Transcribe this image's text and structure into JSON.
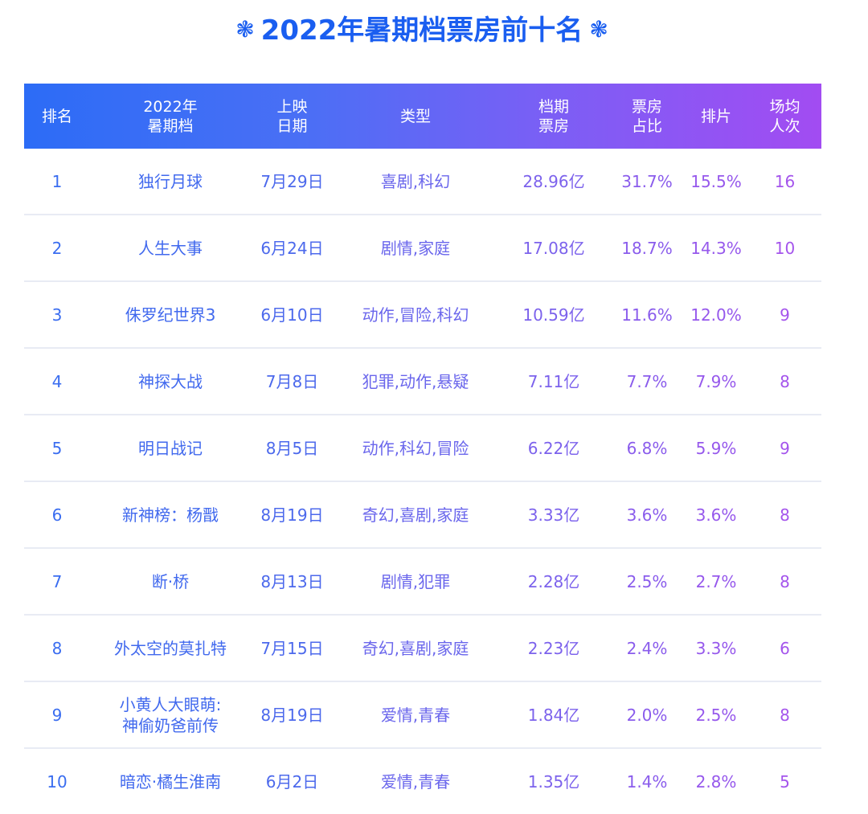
{
  "title": {
    "text": "2022年暑期档票房前十名",
    "left_icon": "snowflake-icon",
    "right_icon": "snowflake-icon",
    "icon_glyph": "❃"
  },
  "colors": {
    "title": "#1a5ef0",
    "header_gradient_start": "#2c6cf6",
    "header_gradient_end": "#a24cf2",
    "row_divider": "#e8ebf4"
  },
  "table": {
    "headers": [
      {
        "line1": "排名",
        "line2": ""
      },
      {
        "line1": "2022年",
        "line2": "暑期档"
      },
      {
        "line1": "上映",
        "line2": "日期"
      },
      {
        "line1": "类型",
        "line2": ""
      },
      {
        "line1": "档期",
        "line2": "票房"
      },
      {
        "line1": "票房",
        "line2": "占比"
      },
      {
        "line1": "排片",
        "line2": ""
      },
      {
        "line1": "场均",
        "line2": "人次"
      }
    ],
    "rows": [
      {
        "rank": "1",
        "title_line1": "独行月球",
        "title_line2": "",
        "date": "7月29日",
        "genre": "喜剧,科幻",
        "box_office": "28.96亿",
        "share": "31.7%",
        "screening": "15.5%",
        "avg_viewers": "16"
      },
      {
        "rank": "2",
        "title_line1": "人生大事",
        "title_line2": "",
        "date": "6月24日",
        "genre": "剧情,家庭",
        "box_office": "17.08亿",
        "share": "18.7%",
        "screening": "14.3%",
        "avg_viewers": "10"
      },
      {
        "rank": "3",
        "title_line1": "侏罗纪世界3",
        "title_line2": "",
        "date": "6月10日",
        "genre": "动作,冒险,科幻",
        "box_office": "10.59亿",
        "share": "11.6%",
        "screening": "12.0%",
        "avg_viewers": "9"
      },
      {
        "rank": "4",
        "title_line1": "神探大战",
        "title_line2": "",
        "date": "7月8日",
        "genre": "犯罪,动作,悬疑",
        "box_office": "7.11亿",
        "share": "7.7%",
        "screening": "7.9%",
        "avg_viewers": "8"
      },
      {
        "rank": "5",
        "title_line1": "明日战记",
        "title_line2": "",
        "date": "8月5日",
        "genre": "动作,科幻,冒险",
        "box_office": "6.22亿",
        "share": "6.8%",
        "screening": "5.9%",
        "avg_viewers": "9"
      },
      {
        "rank": "6",
        "title_line1": "新神榜：杨戬",
        "title_line2": "",
        "date": "8月19日",
        "genre": "奇幻,喜剧,家庭",
        "box_office": "3.33亿",
        "share": "3.6%",
        "screening": "3.6%",
        "avg_viewers": "8"
      },
      {
        "rank": "7",
        "title_line1": "断·桥",
        "title_line2": "",
        "date": "8月13日",
        "genre": "剧情,犯罪",
        "box_office": "2.28亿",
        "share": "2.5%",
        "screening": "2.7%",
        "avg_viewers": "8"
      },
      {
        "rank": "8",
        "title_line1": "外太空的莫扎特",
        "title_line2": "",
        "date": "7月15日",
        "genre": "奇幻,喜剧,家庭",
        "box_office": "2.23亿",
        "share": "2.4%",
        "screening": "3.3%",
        "avg_viewers": "6"
      },
      {
        "rank": "9",
        "title_line1": "小黄人大眼萌:",
        "title_line2": "神偷奶爸前传",
        "date": "8月19日",
        "genre": "爱情,青春",
        "box_office": "1.84亿",
        "share": "2.0%",
        "screening": "2.5%",
        "avg_viewers": "8"
      },
      {
        "rank": "10",
        "title_line1": "暗恋·橘生淮南",
        "title_line2": "",
        "date": "6月2日",
        "genre": "爱情,青春",
        "box_office": "1.35亿",
        "share": "1.4%",
        "screening": "2.8%",
        "avg_viewers": "5"
      }
    ]
  },
  "chart_data": {
    "type": "table",
    "title": "2022年暑期档票房前十名",
    "columns": [
      "排名",
      "2022年暑期档",
      "上映日期",
      "类型",
      "档期票房",
      "票房占比",
      "排片",
      "场均人次"
    ],
    "rows": [
      [
        1,
        "独行月球",
        "7月29日",
        "喜剧,科幻",
        "28.96亿",
        "31.7%",
        "15.5%",
        16
      ],
      [
        2,
        "人生大事",
        "6月24日",
        "剧情,家庭",
        "17.08亿",
        "18.7%",
        "14.3%",
        10
      ],
      [
        3,
        "侏罗纪世界3",
        "6月10日",
        "动作,冒险,科幻",
        "10.59亿",
        "11.6%",
        "12.0%",
        9
      ],
      [
        4,
        "神探大战",
        "7月8日",
        "犯罪,动作,悬疑",
        "7.11亿",
        "7.7%",
        "7.9%",
        8
      ],
      [
        5,
        "明日战记",
        "8月5日",
        "动作,科幻,冒险",
        "6.22亿",
        "6.8%",
        "5.9%",
        9
      ],
      [
        6,
        "新神榜：杨戬",
        "8月19日",
        "奇幻,喜剧,家庭",
        "3.33亿",
        "3.6%",
        "3.6%",
        8
      ],
      [
        7,
        "断·桥",
        "8月13日",
        "剧情,犯罪",
        "2.28亿",
        "2.5%",
        "2.7%",
        8
      ],
      [
        8,
        "外太空的莫扎特",
        "7月15日",
        "奇幻,喜剧,家庭",
        "2.23亿",
        "2.4%",
        "3.3%",
        6
      ],
      [
        9,
        "小黄人大眼萌:神偷奶爸前传",
        "8月19日",
        "爱情,青春",
        "1.84亿",
        "2.0%",
        "2.5%",
        8
      ],
      [
        10,
        "暗恋·橘生淮南",
        "6月2日",
        "爱情,青春",
        "1.35亿",
        "1.4%",
        "2.8%",
        5
      ]
    ],
    "box_office_yi": [
      28.96,
      17.08,
      10.59,
      7.11,
      6.22,
      3.33,
      2.28,
      2.23,
      1.84,
      1.35
    ],
    "share_pct": [
      31.7,
      18.7,
      11.6,
      7.7,
      6.8,
      3.6,
      2.5,
      2.4,
      2.0,
      1.4
    ],
    "screening_pct": [
      15.5,
      14.3,
      12.0,
      7.9,
      5.9,
      3.6,
      2.7,
      3.3,
      2.5,
      2.8
    ],
    "avg_viewers": [
      16,
      10,
      9,
      8,
      9,
      8,
      8,
      6,
      8,
      5
    ]
  }
}
